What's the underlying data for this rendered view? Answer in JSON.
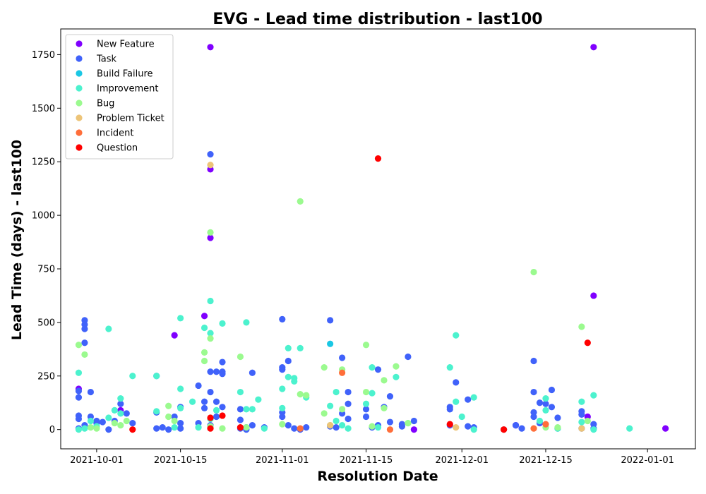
{
  "chart_data": {
    "type": "scatter",
    "title": "EVG - Lead time distribution - last100",
    "xlabel": "Resolution Date",
    "ylabel": "Lead Time (days) - last100",
    "x_is_date": true,
    "xlim": [
      "2021-09-25",
      "2022-01-09"
    ],
    "ylim": [
      -90,
      1870
    ],
    "x_ticks": [
      "2021-10-01",
      "2021-10-15",
      "2021-11-01",
      "2021-11-15",
      "2021-12-01",
      "2021-12-15",
      "2022-01-01"
    ],
    "y_ticks": [
      0,
      250,
      500,
      750,
      1000,
      1250,
      1500,
      1750
    ],
    "grid": false,
    "legend_position": "top-left",
    "series": [
      {
        "name": "New Feature",
        "color": "#8000ff",
        "points": [
          [
            "2021-10-20",
            1785
          ],
          [
            "2021-10-20",
            1215
          ],
          [
            "2021-10-20",
            895
          ],
          [
            "2021-10-19",
            530
          ],
          [
            "2021-10-14",
            440
          ],
          [
            "2021-10-05",
            90
          ],
          [
            "2021-09-28",
            190
          ],
          [
            "2021-11-23",
            0
          ],
          [
            "2021-12-10",
            20
          ],
          [
            "2021-12-23",
            1785
          ],
          [
            "2021-12-23",
            625
          ],
          [
            "2021-12-22",
            60
          ],
          [
            "2022-01-04",
            5
          ],
          [
            "2021-12-08",
            0
          ]
        ]
      },
      {
        "name": "Task",
        "color": "#4062fa",
        "points": [
          [
            "2021-09-28",
            5
          ],
          [
            "2021-09-28",
            50
          ],
          [
            "2021-09-28",
            65
          ],
          [
            "2021-09-28",
            150
          ],
          [
            "2021-09-28",
            180
          ],
          [
            "2021-09-29",
            470
          ],
          [
            "2021-09-29",
            490
          ],
          [
            "2021-09-29",
            510
          ],
          [
            "2021-09-29",
            405
          ],
          [
            "2021-09-29",
            20
          ],
          [
            "2021-09-30",
            175
          ],
          [
            "2021-09-30",
            60
          ],
          [
            "2021-10-01",
            40
          ],
          [
            "2021-10-01",
            30
          ],
          [
            "2021-10-02",
            35
          ],
          [
            "2021-10-03",
            0
          ],
          [
            "2021-10-04",
            40
          ],
          [
            "2021-10-05",
            120
          ],
          [
            "2021-10-06",
            75
          ],
          [
            "2021-10-07",
            30
          ],
          [
            "2021-10-11",
            250
          ],
          [
            "2021-10-11",
            80
          ],
          [
            "2021-10-11",
            5
          ],
          [
            "2021-10-12",
            10
          ],
          [
            "2021-10-13",
            0
          ],
          [
            "2021-10-14",
            60
          ],
          [
            "2021-10-15",
            105
          ],
          [
            "2021-10-15",
            30
          ],
          [
            "2021-10-15",
            5
          ],
          [
            "2021-10-18",
            205
          ],
          [
            "2021-10-18",
            30
          ],
          [
            "2021-10-19",
            130
          ],
          [
            "2021-10-19",
            100
          ],
          [
            "2021-10-20",
            1285
          ],
          [
            "2021-10-20",
            175
          ],
          [
            "2021-10-20",
            270
          ],
          [
            "2021-10-20",
            20
          ],
          [
            "2021-10-21",
            270
          ],
          [
            "2021-10-21",
            130
          ],
          [
            "2021-10-21",
            60
          ],
          [
            "2021-10-22",
            315
          ],
          [
            "2021-10-22",
            270
          ],
          [
            "2021-10-22",
            260
          ],
          [
            "2021-10-22",
            105
          ],
          [
            "2021-10-25",
            95
          ],
          [
            "2021-10-25",
            45
          ],
          [
            "2021-10-25",
            5
          ],
          [
            "2021-10-26",
            0
          ],
          [
            "2021-10-26",
            10
          ],
          [
            "2021-10-27",
            20
          ],
          [
            "2021-10-27",
            265
          ],
          [
            "2021-10-29",
            10
          ],
          [
            "2021-11-01",
            515
          ],
          [
            "2021-11-01",
            290
          ],
          [
            "2021-11-01",
            280
          ],
          [
            "2021-11-01",
            80
          ],
          [
            "2021-11-01",
            60
          ],
          [
            "2021-11-02",
            320
          ],
          [
            "2021-11-02",
            20
          ],
          [
            "2021-11-03",
            5
          ],
          [
            "2021-11-04",
            0
          ],
          [
            "2021-11-05",
            10
          ],
          [
            "2021-11-09",
            510
          ],
          [
            "2021-11-09",
            15
          ],
          [
            "2021-11-10",
            10
          ],
          [
            "2021-11-11",
            335
          ],
          [
            "2021-11-11",
            75
          ],
          [
            "2021-11-12",
            175
          ],
          [
            "2021-11-12",
            120
          ],
          [
            "2021-11-12",
            50
          ],
          [
            "2021-11-15",
            95
          ],
          [
            "2021-11-15",
            60
          ],
          [
            "2021-11-16",
            10
          ],
          [
            "2021-11-17",
            280
          ],
          [
            "2021-11-17",
            20
          ],
          [
            "2021-11-18",
            105
          ],
          [
            "2021-11-19",
            155
          ],
          [
            "2021-11-19",
            35
          ],
          [
            "2021-11-22",
            340
          ],
          [
            "2021-11-21",
            25
          ],
          [
            "2021-11-21",
            15
          ],
          [
            "2021-11-23",
            40
          ],
          [
            "2021-11-29",
            105
          ],
          [
            "2021-11-29",
            95
          ],
          [
            "2021-11-29",
            20
          ],
          [
            "2021-11-30",
            220
          ],
          [
            "2021-12-02",
            140
          ],
          [
            "2021-12-02",
            15
          ],
          [
            "2021-12-03",
            10
          ],
          [
            "2021-12-10",
            20
          ],
          [
            "2021-12-11",
            5
          ],
          [
            "2021-12-13",
            175
          ],
          [
            "2021-12-13",
            320
          ],
          [
            "2021-12-13",
            80
          ],
          [
            "2021-12-13",
            60
          ],
          [
            "2021-12-14",
            125
          ],
          [
            "2021-12-14",
            30
          ],
          [
            "2021-12-15",
            120
          ],
          [
            "2021-12-16",
            185
          ],
          [
            "2021-12-16",
            105
          ],
          [
            "2021-12-17",
            55
          ],
          [
            "2021-12-17",
            5
          ],
          [
            "2021-12-21",
            85
          ],
          [
            "2021-12-21",
            70
          ],
          [
            "2021-12-21",
            5
          ],
          [
            "2021-12-23",
            25
          ],
          [
            "2021-12-23",
            5
          ]
        ]
      },
      {
        "name": "Build Failure",
        "color": "#1ac7e4",
        "points": [
          [
            "2021-11-09",
            400
          ]
        ]
      },
      {
        "name": "Improvement",
        "color": "#4cf2ce",
        "points": [
          [
            "2021-09-28",
            265
          ],
          [
            "2021-09-28",
            0
          ],
          [
            "2021-09-29",
            5
          ],
          [
            "2021-09-30",
            40
          ],
          [
            "2021-10-01",
            15
          ],
          [
            "2021-10-03",
            470
          ],
          [
            "2021-10-03",
            55
          ],
          [
            "2021-10-04",
            90
          ],
          [
            "2021-10-05",
            145
          ],
          [
            "2021-10-05",
            75
          ],
          [
            "2021-10-07",
            250
          ],
          [
            "2021-10-11",
            85
          ],
          [
            "2021-10-11",
            250
          ],
          [
            "2021-10-14",
            10
          ],
          [
            "2021-10-15",
            520
          ],
          [
            "2021-10-15",
            190
          ],
          [
            "2021-10-15",
            100
          ],
          [
            "2021-10-17",
            130
          ],
          [
            "2021-10-18",
            10
          ],
          [
            "2021-10-19",
            475
          ],
          [
            "2021-10-20",
            600
          ],
          [
            "2021-10-20",
            450
          ],
          [
            "2021-10-20",
            50
          ],
          [
            "2021-10-21",
            90
          ],
          [
            "2021-10-22",
            495
          ],
          [
            "2021-10-25",
            175
          ],
          [
            "2021-10-26",
            500
          ],
          [
            "2021-10-26",
            95
          ],
          [
            "2021-10-27",
            95
          ],
          [
            "2021-10-28",
            140
          ],
          [
            "2021-10-29",
            5
          ],
          [
            "2021-11-01",
            190
          ],
          [
            "2021-11-01",
            100
          ],
          [
            "2021-11-02",
            380
          ],
          [
            "2021-11-02",
            245
          ],
          [
            "2021-11-03",
            240
          ],
          [
            "2021-11-03",
            225
          ],
          [
            "2021-11-04",
            380
          ],
          [
            "2021-11-05",
            150
          ],
          [
            "2021-11-09",
            110
          ],
          [
            "2021-11-10",
            175
          ],
          [
            "2021-11-10",
            40
          ],
          [
            "2021-11-11",
            20
          ],
          [
            "2021-11-12",
            5
          ],
          [
            "2021-11-16",
            290
          ],
          [
            "2021-11-16",
            170
          ],
          [
            "2021-11-15",
            120
          ],
          [
            "2021-11-17",
            10
          ],
          [
            "2021-11-20",
            245
          ],
          [
            "2021-11-22",
            30
          ],
          [
            "2021-11-29",
            290
          ],
          [
            "2021-11-30",
            440
          ],
          [
            "2021-11-30",
            130
          ],
          [
            "2021-12-01",
            60
          ],
          [
            "2021-12-03",
            150
          ],
          [
            "2021-12-03",
            0
          ],
          [
            "2021-12-15",
            145
          ],
          [
            "2021-12-15",
            90
          ],
          [
            "2021-12-14",
            40
          ],
          [
            "2021-12-17",
            5
          ],
          [
            "2021-12-21",
            130
          ],
          [
            "2021-12-21",
            35
          ],
          [
            "2021-12-23",
            160
          ],
          [
            "2021-12-23",
            0
          ],
          [
            "2021-12-29",
            5
          ]
        ]
      },
      {
        "name": "Bug",
        "color": "#9bfa8f",
        "points": [
          [
            "2021-09-28",
            395
          ],
          [
            "2021-09-29",
            350
          ],
          [
            "2021-09-30",
            10
          ],
          [
            "2021-10-01",
            5
          ],
          [
            "2021-10-04",
            30
          ],
          [
            "2021-10-05",
            20
          ],
          [
            "2021-10-06",
            40
          ],
          [
            "2021-10-13",
            110
          ],
          [
            "2021-10-13",
            60
          ],
          [
            "2021-10-14",
            40
          ],
          [
            "2021-10-19",
            360
          ],
          [
            "2021-10-20",
            920
          ],
          [
            "2021-10-20",
            425
          ],
          [
            "2021-10-19",
            320
          ],
          [
            "2021-10-20",
            15
          ],
          [
            "2021-10-22",
            5
          ],
          [
            "2021-10-25",
            340
          ],
          [
            "2021-10-26",
            10
          ],
          [
            "2021-11-01",
            25
          ],
          [
            "2021-11-04",
            1065
          ],
          [
            "2021-11-04",
            165
          ],
          [
            "2021-11-05",
            160
          ],
          [
            "2021-11-08",
            290
          ],
          [
            "2021-11-08",
            75
          ],
          [
            "2021-11-09",
            20
          ],
          [
            "2021-11-11",
            280
          ],
          [
            "2021-11-11",
            95
          ],
          [
            "2021-11-15",
            395
          ],
          [
            "2021-11-15",
            175
          ],
          [
            "2021-11-16",
            15
          ],
          [
            "2021-11-18",
            100
          ],
          [
            "2021-11-18",
            230
          ],
          [
            "2021-11-20",
            295
          ],
          [
            "2021-11-22",
            30
          ],
          [
            "2021-12-08",
            0
          ],
          [
            "2021-12-13",
            735
          ],
          [
            "2021-12-15",
            10
          ],
          [
            "2021-12-17",
            10
          ],
          [
            "2021-12-21",
            480
          ],
          [
            "2021-12-22",
            40
          ]
        ]
      },
      {
        "name": "Problem Ticket",
        "color": "#edc478",
        "points": [
          [
            "2021-10-20",
            1235
          ],
          [
            "2021-11-09",
            20
          ],
          [
            "2021-11-30",
            10
          ],
          [
            "2021-12-21",
            5
          ]
        ]
      },
      {
        "name": "Incident",
        "color": "#ff6e3a",
        "points": [
          [
            "2021-11-04",
            5
          ],
          [
            "2021-11-11",
            265
          ],
          [
            "2021-11-19",
            0
          ],
          [
            "2021-12-13",
            5
          ],
          [
            "2021-12-15",
            25
          ]
        ]
      },
      {
        "name": "Question",
        "color": "#ff0000",
        "points": [
          [
            "2021-10-07",
            0
          ],
          [
            "2021-10-20",
            55
          ],
          [
            "2021-10-20",
            5
          ],
          [
            "2021-10-22",
            65
          ],
          [
            "2021-10-25",
            10
          ],
          [
            "2021-11-17",
            1265
          ],
          [
            "2021-11-29",
            25
          ],
          [
            "2021-12-08",
            0
          ],
          [
            "2021-12-22",
            405
          ]
        ]
      }
    ]
  }
}
